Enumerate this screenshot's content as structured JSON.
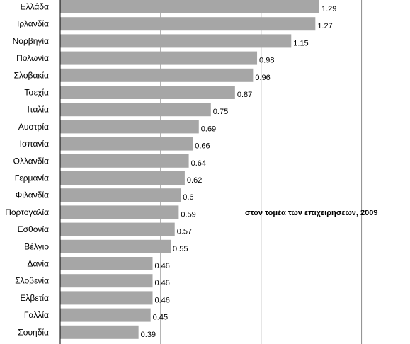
{
  "chart_data": {
    "type": "bar",
    "orientation": "horizontal",
    "annotation": "στον τομέα των επιχειρήσεων, 2009",
    "categories": [
      "Ελλάδα",
      "Ιρλανδία",
      "Νορβηγία",
      "Πολωνία",
      "Σλοβακία",
      "Τσεχία",
      "Ιταλία",
      "Αυστρία",
      "Ισπανία",
      "Ολλανδία",
      "Γερμανία",
      "Φιλανδία",
      "Πορτογαλία",
      "Εσθονία",
      "Βέλγιο",
      "Δανία",
      "Σλοβενία",
      "Ελβετία",
      "Γαλλία",
      "Σουηδία"
    ],
    "values": [
      1.29,
      1.27,
      1.15,
      0.98,
      0.96,
      0.87,
      0.75,
      0.69,
      0.66,
      0.64,
      0.62,
      0.6,
      0.59,
      0.57,
      0.55,
      0.46,
      0.46,
      0.46,
      0.45,
      0.39
    ],
    "value_labels": [
      "1.29",
      "1.27",
      "1.15",
      "0.98",
      "0.96",
      "0.87",
      "0.75",
      "0.69",
      "0.66",
      "0.64",
      "0.62",
      "0.6",
      "0.59",
      "0.57",
      "0.55",
      "0.46",
      "0.46",
      "0.46",
      "0.45",
      "0.39"
    ],
    "xlim": [
      0,
      1.5
    ],
    "grid": true,
    "colors": {
      "bar": "#a6a6a6",
      "grid": "#8c8c8c",
      "axis": "#000000"
    }
  }
}
